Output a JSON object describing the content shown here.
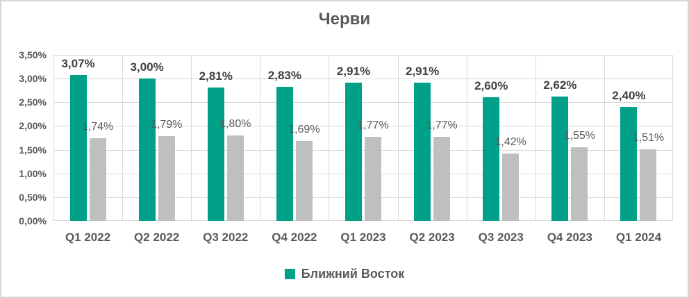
{
  "chart_data": {
    "type": "bar",
    "title": "Черви",
    "categories": [
      "Q1 2022",
      "Q2 2022",
      "Q3 2022",
      "Q4 2022",
      "Q1 2023",
      "Q2 2023",
      "Q3 2023",
      "Q4 2023",
      "Q1 2024"
    ],
    "series": [
      {
        "name": "Ближний Восток",
        "color": "#00A188",
        "in_legend": true,
        "values": [
          3.07,
          3.0,
          2.81,
          2.83,
          2.91,
          2.91,
          2.6,
          2.62,
          2.4
        ],
        "labels": [
          "3,07%",
          "3,00%",
          "2,81%",
          "2,83%",
          "2,91%",
          "2,91%",
          "2,60%",
          "2,62%",
          "2,40%"
        ]
      },
      {
        "name": "",
        "color": "#BFBFBF",
        "in_legend": false,
        "values": [
          1.74,
          1.79,
          1.8,
          1.69,
          1.77,
          1.77,
          1.42,
          1.55,
          1.51
        ],
        "labels": [
          "1,74%",
          "1,79%",
          "1,80%",
          "1,69%",
          "1,77%",
          "1,77%",
          "1,42%",
          "1,55%",
          "1,51%"
        ]
      }
    ],
    "y_axis": {
      "ticks": [
        "3,50%",
        "3,00%",
        "2,50%",
        "2,00%",
        "1,50%",
        "1,00%",
        "0,50%",
        "0,00%"
      ],
      "min": 0,
      "max": 3.5
    },
    "grid": true,
    "legend": {
      "position": "bottom",
      "items": [
        {
          "label": "Ближний Восток",
          "color": "#00A188"
        }
      ]
    },
    "colors": {
      "gridline": "#D9D9D9",
      "title_text": "#595959",
      "axis_text": "#595959",
      "series_label_dark": "#404040"
    }
  }
}
